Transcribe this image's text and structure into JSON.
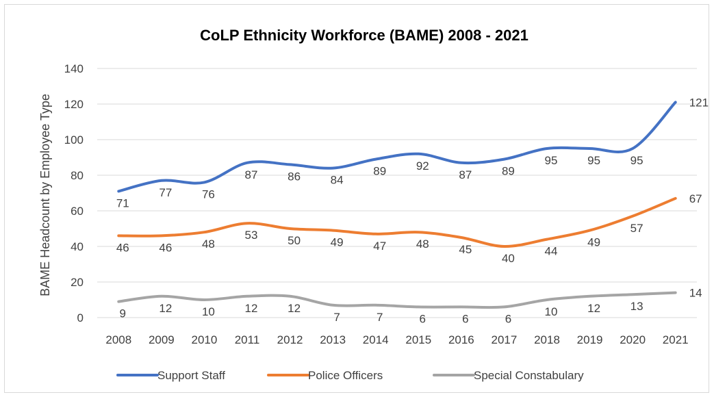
{
  "chart_data": {
    "type": "line",
    "title": "CoLP Ethnicity Workforce (BAME) 2008 - 2021",
    "xlabel": "",
    "ylabel": "BAME Headcount by Employee Type",
    "ylim": [
      0,
      140
    ],
    "yticks": [
      0,
      20,
      40,
      60,
      80,
      100,
      120,
      140
    ],
    "grid": true,
    "legend_position": "bottom",
    "categories": [
      "2008",
      "2009",
      "2010",
      "2011",
      "2012",
      "2013",
      "2014",
      "2015",
      "2016",
      "2017",
      "2018",
      "2019",
      "2020",
      "2021"
    ],
    "series": [
      {
        "name": "Support Staff",
        "color": "#4472C4",
        "values": [
          71,
          77,
          76,
          87,
          86,
          84,
          89,
          92,
          87,
          89,
          95,
          95,
          95,
          121
        ]
      },
      {
        "name": "Police Officers",
        "color": "#ED7D31",
        "values": [
          46,
          46,
          48,
          53,
          50,
          49,
          47,
          48,
          45,
          40,
          44,
          49,
          57,
          67
        ]
      },
      {
        "name": "Special Constabulary",
        "color": "#A5A5A5",
        "values": [
          9,
          12,
          10,
          12,
          12,
          7,
          7,
          6,
          6,
          6,
          10,
          12,
          13,
          14
        ]
      }
    ]
  }
}
